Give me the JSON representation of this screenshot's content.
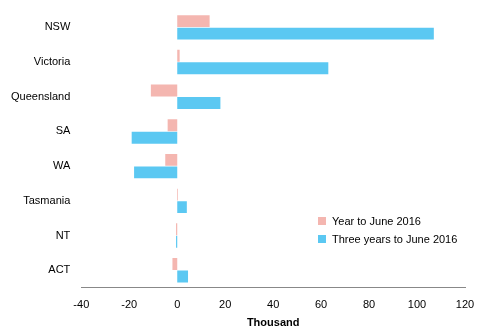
{
  "chart_data": {
    "type": "bar",
    "orientation": "horizontal",
    "categories": [
      "NSW",
      "Victoria",
      "Queensland",
      "SA",
      "WA",
      "Tasmania",
      "NT",
      "ACT"
    ],
    "series": [
      {
        "name": "Year to June 2016",
        "color": "#f4b6b0",
        "values": [
          13.5,
          1,
          -11,
          -4,
          -5,
          0.3,
          -0.5,
          -2
        ]
      },
      {
        "name": "Three years to June 2016",
        "color": "#5bc8f2",
        "values": [
          107,
          63,
          18,
          -19,
          -18,
          4,
          -0.5,
          4.5
        ]
      }
    ],
    "x_label": "Thousand",
    "xlim": [
      -40,
      120
    ],
    "xticks": [
      -40,
      -20,
      0,
      20,
      40,
      60,
      80,
      100,
      120
    ],
    "grid": false,
    "legend": "lower right"
  }
}
